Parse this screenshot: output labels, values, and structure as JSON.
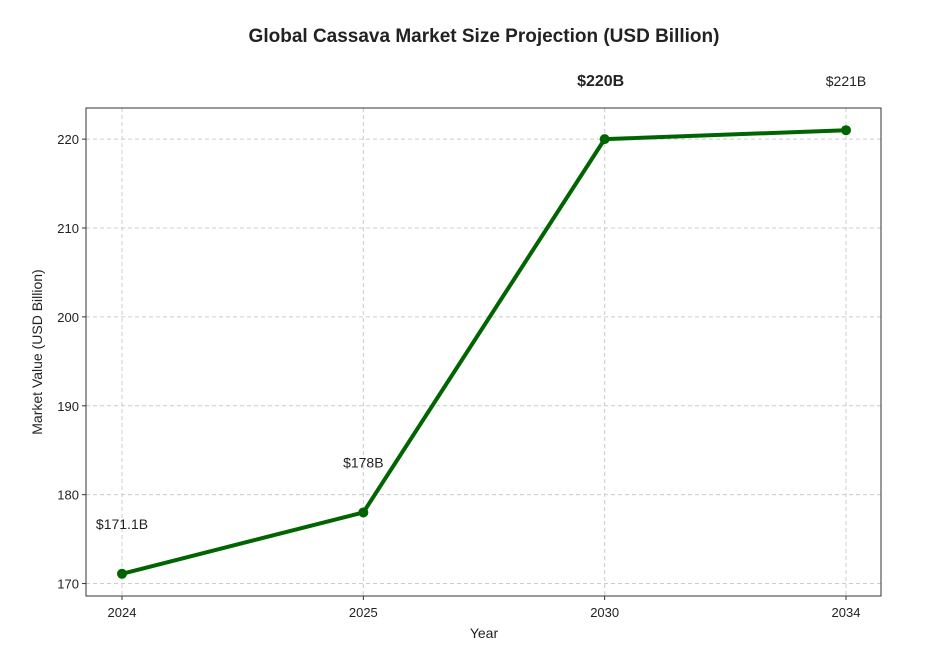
{
  "chart_data": {
    "type": "line",
    "title": "Global Cassava Market Size Projection (USD Billion)",
    "xlabel": "Year",
    "ylabel": "Market Value (USD Billion)",
    "categories": [
      "2024",
      "2025",
      "2030",
      "2034"
    ],
    "series": [
      {
        "values": [
          171.1,
          178,
          220,
          221
        ],
        "color": "#006400"
      }
    ],
    "ylim": [
      168.6,
      223.5
    ],
    "yticks": [
      170,
      180,
      190,
      200,
      210,
      220
    ],
    "grid": true,
    "grid_style": "dashed",
    "annotations": [
      {
        "text": "$171.1B",
        "bold": false
      },
      {
        "text": "$178B",
        "bold": false
      },
      {
        "text": "$220B",
        "bold": true
      },
      {
        "text": "$221B",
        "bold": false
      }
    ]
  }
}
